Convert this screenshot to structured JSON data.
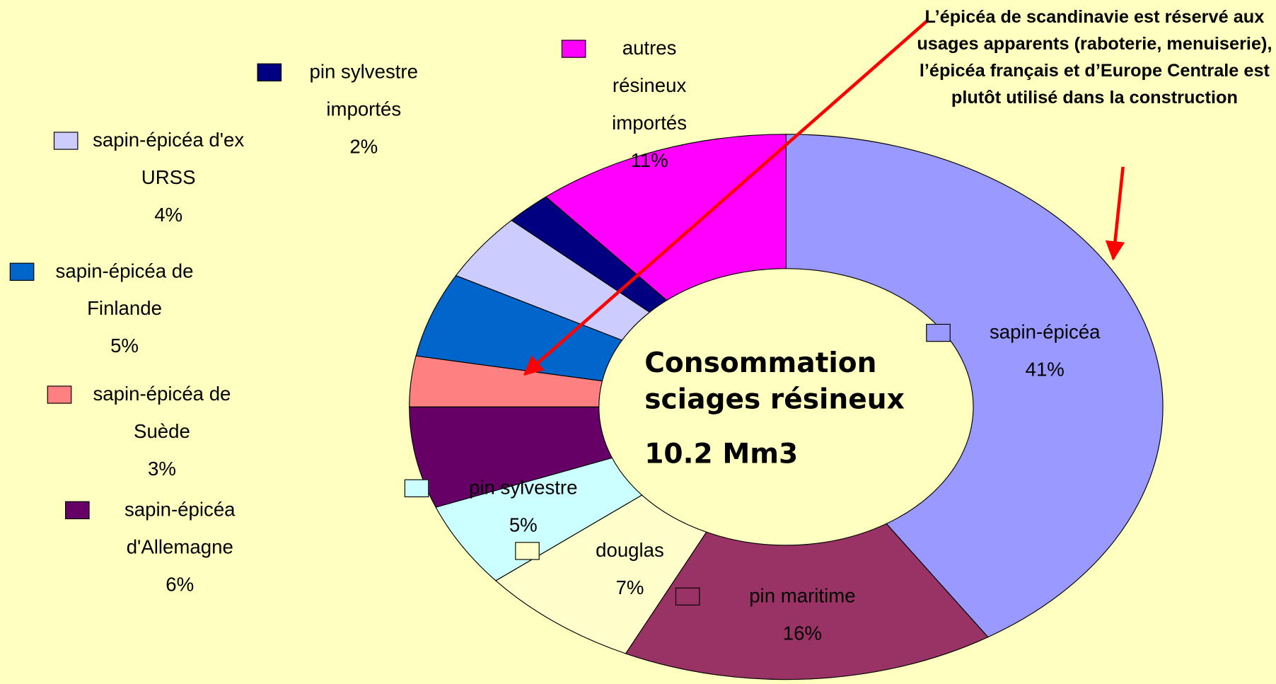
{
  "chart_data": {
    "type": "donut",
    "title": "Consommation sciages résineux",
    "subtitle": "10.2 Mm3",
    "annotation": "L’épicéa de scandinavie est réservé aux usages apparents (raboterie, menuiserie), l’épicéa français et d’Europe Centrale est plutôt utilisé dans la construction",
    "categories": [
      "sapin-épicéa",
      "pin maritime",
      "douglas",
      "pin sylvestre",
      "sapin-épicéa d'Allemagne",
      "sapin-épicéa de Suède",
      "sapin-épicéa de Finlande",
      "sapin-épicéa d'ex URSS",
      "pin sylvestre importés",
      "autres résineux importés"
    ],
    "values": [
      41,
      16,
      7,
      5,
      6,
      3,
      5,
      4,
      2,
      11
    ],
    "value_labels": [
      "41%",
      "16%",
      "7%",
      "5%",
      "6%",
      "3%",
      "5%",
      "4%",
      "2%",
      "11%"
    ],
    "colors": [
      "#9999ff",
      "#993366",
      "#ffffcc",
      "#ccffff",
      "#660066",
      "#ff8080",
      "#0066cc",
      "#ccccff",
      "#000080",
      "#ff00ff"
    ]
  }
}
